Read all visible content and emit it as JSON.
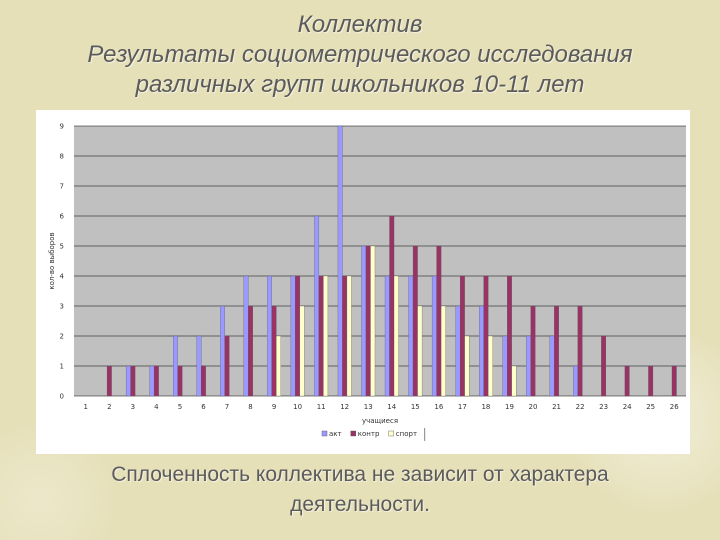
{
  "title_lines": [
    "Коллектив",
    "Результаты социометрического исследования",
    "различных групп школьников 10-11 лет"
  ],
  "conclusion_lines": [
    "Сплоченность коллектива не зависит от характера",
    "деятельности."
  ],
  "colors": {
    "background": "#e6e0b9",
    "plot_area": "#c0c0c0",
    "series_akt": "#9999ff",
    "series_kontr": "#993366",
    "series_sport": "#ffffcc"
  },
  "chart_data": {
    "type": "bar",
    "xlabel": "учащиеся",
    "ylabel": "кол-во выборов",
    "ylim": [
      0,
      9
    ],
    "yticks": [
      "0",
      "1",
      "2",
      "3",
      "4",
      "5",
      "6",
      "7",
      "8",
      "9"
    ],
    "grid": true,
    "legend_position": "bottom",
    "categories": [
      "1",
      "2",
      "3",
      "4",
      "5",
      "6",
      "7",
      "8",
      "9",
      "10",
      "11",
      "12",
      "13",
      "14",
      "15",
      "16",
      "17",
      "18",
      "19",
      "20",
      "21",
      "22",
      "23",
      "24",
      "25",
      "26"
    ],
    "series": [
      {
        "name": "акт",
        "color": "#9999ff",
        "values": [
          0,
          0,
          1,
          1,
          2,
          2,
          3,
          4,
          4,
          4,
          6,
          9,
          5,
          4,
          4,
          4,
          3,
          3,
          2,
          2,
          2,
          1,
          null,
          null,
          null,
          null
        ]
      },
      {
        "name": "контр",
        "color": "#993366",
        "values": [
          0,
          1,
          1,
          1,
          1,
          1,
          2,
          3,
          3,
          4,
          4,
          4,
          5,
          6,
          5,
          5,
          4,
          4,
          4,
          3,
          3,
          3,
          2,
          1,
          1,
          1
        ]
      },
      {
        "name": "спорт",
        "color": "#ffffcc",
        "values": [
          0,
          0,
          0,
          0,
          0,
          0,
          0,
          0,
          2,
          3,
          4,
          4,
          5,
          4,
          3,
          3,
          2,
          2,
          1,
          null,
          null,
          null,
          null,
          null,
          null,
          null
        ]
      }
    ]
  }
}
